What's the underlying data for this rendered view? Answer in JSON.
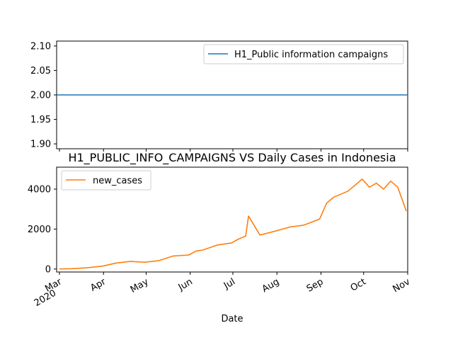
{
  "chart_data": [
    {
      "type": "line",
      "series": [
        {
          "name": "H1_Public information campaigns",
          "color": "#1f77b4",
          "x": [
            "2020-03-01",
            "2020-11-01"
          ],
          "values": [
            2.0,
            2.0
          ]
        }
      ],
      "ylim": [
        1.89,
        2.11
      ],
      "yticks": [
        1.9,
        1.95,
        2.0,
        2.05,
        2.1
      ],
      "ytick_labels": [
        "1.90",
        "1.95",
        "2.00",
        "2.05",
        "2.10"
      ],
      "legend": "upper-right"
    },
    {
      "type": "line",
      "title": "H1_PUBLIC_INFO_CAMPAIGNS VS Daily Cases in Indonesia",
      "xlabel": "Date",
      "series": [
        {
          "name": "new_cases",
          "color": "#ff7f0e",
          "x": [
            "2020-03-01",
            "2020-03-10",
            "2020-03-20",
            "2020-03-31",
            "2020-04-10",
            "2020-04-20",
            "2020-04-30",
            "2020-05-10",
            "2020-05-20",
            "2020-05-31",
            "2020-06-05",
            "2020-06-10",
            "2020-06-20",
            "2020-06-30",
            "2020-07-05",
            "2020-07-10",
            "2020-07-12",
            "2020-07-20",
            "2020-07-31",
            "2020-08-10",
            "2020-08-20",
            "2020-08-31",
            "2020-09-05",
            "2020-09-10",
            "2020-09-20",
            "2020-09-30",
            "2020-10-05",
            "2020-10-10",
            "2020-10-15",
            "2020-10-20",
            "2020-10-25",
            "2020-10-31"
          ],
          "values": [
            2,
            15,
            60,
            140,
            300,
            380,
            340,
            420,
            650,
            700,
            900,
            950,
            1200,
            1300,
            1500,
            1650,
            2650,
            1700,
            1900,
            2100,
            2200,
            2500,
            3300,
            3600,
            3900,
            4500,
            4100,
            4300,
            4000,
            4400,
            4100,
            2900
          ]
        }
      ],
      "ylim": [
        -150,
        5100
      ],
      "yticks": [
        0,
        2000,
        4000
      ],
      "ytick_labels": [
        "0",
        "2000",
        "4000"
      ],
      "xlim": [
        "2020-02-28",
        "2020-11-01"
      ],
      "xticks": [
        {
          "date": "2020-03-01",
          "label": "Mar",
          "sublabel": "2020"
        },
        {
          "date": "2020-04-01",
          "label": "Apr"
        },
        {
          "date": "2020-05-01",
          "label": "May"
        },
        {
          "date": "2020-06-01",
          "label": "Jun"
        },
        {
          "date": "2020-07-01",
          "label": "Jul"
        },
        {
          "date": "2020-08-01",
          "label": "Aug"
        },
        {
          "date": "2020-09-01",
          "label": "Sep"
        },
        {
          "date": "2020-10-01",
          "label": "Oct"
        },
        {
          "date": "2020-11-01",
          "label": "Nov"
        }
      ],
      "legend": "upper-left"
    }
  ]
}
